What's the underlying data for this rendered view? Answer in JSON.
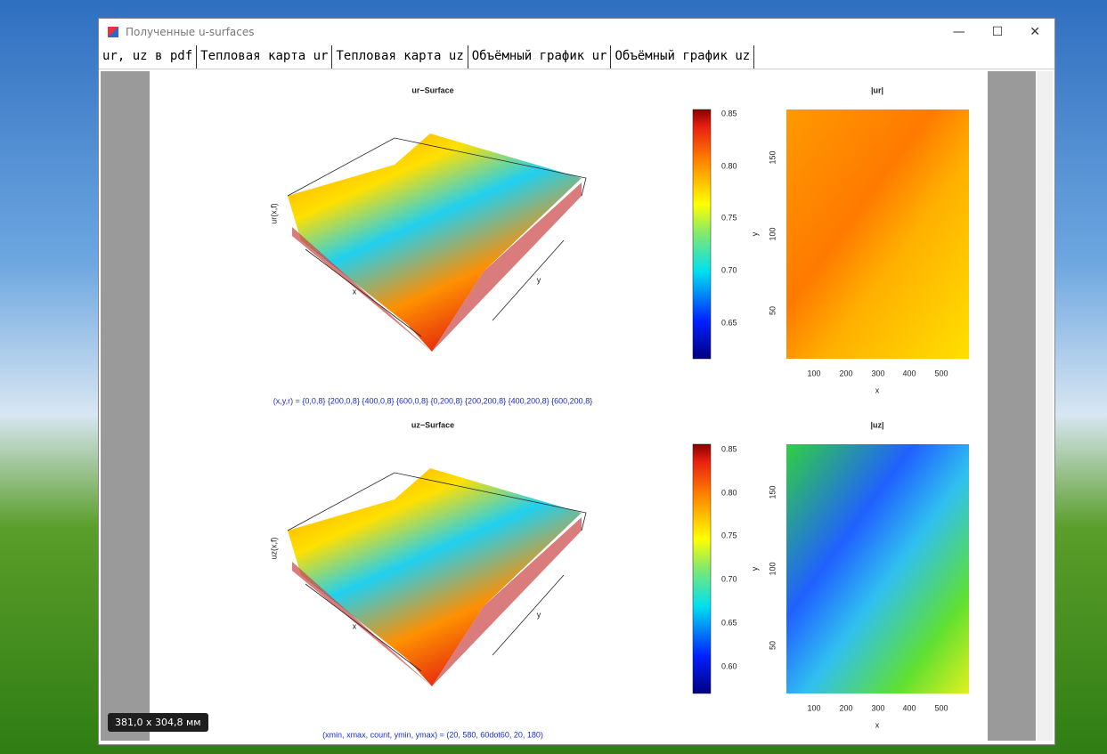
{
  "window": {
    "title": "Полученные u-surfaces"
  },
  "tabs": [
    "ur, uz в pdf",
    "Тепловая карта ur",
    "Тепловая карта uz",
    "Объёмный график ur",
    "Объёмный график uz"
  ],
  "panels": [
    {
      "surface_title": "ur−Surface",
      "z_label": "ur(x,f)",
      "x_label": "x",
      "y_label": "y",
      "colorbar_ticks": [
        "0.85",
        "0.80",
        "0.75",
        "0.70",
        "0.65"
      ],
      "heatmap_title": "|ur|",
      "heatmap_x_ticks": [
        "100",
        "200",
        "300",
        "400",
        "500"
      ],
      "heatmap_y_ticks": [
        "150",
        "100",
        "50"
      ],
      "heatmap_x_label": "x",
      "heatmap_y_label": "y",
      "caption": "(x,y,r) = {0,0,8} {200,0,8} {400,0,8} {600,0,8} {0,200,8} {200,200,8} {400,200,8} {600,200,8}"
    },
    {
      "surface_title": "uz−Surface",
      "z_label": "uz(x,f)",
      "x_label": "x",
      "y_label": "y",
      "colorbar_ticks": [
        "0.85",
        "0.80",
        "0.75",
        "0.70",
        "0.65",
        "0.60"
      ],
      "heatmap_title": "|uz|",
      "heatmap_x_ticks": [
        "100",
        "200",
        "300",
        "400",
        "500"
      ],
      "heatmap_y_ticks": [
        "150",
        "100",
        "50"
      ],
      "heatmap_x_label": "x",
      "heatmap_y_label": "y",
      "caption": "(xmin, xmax, count, ymin, ymax) = (20, 580, 60dot60, 20, 180)"
    }
  ],
  "size_badge": "381,0 x 304,8 мм"
}
